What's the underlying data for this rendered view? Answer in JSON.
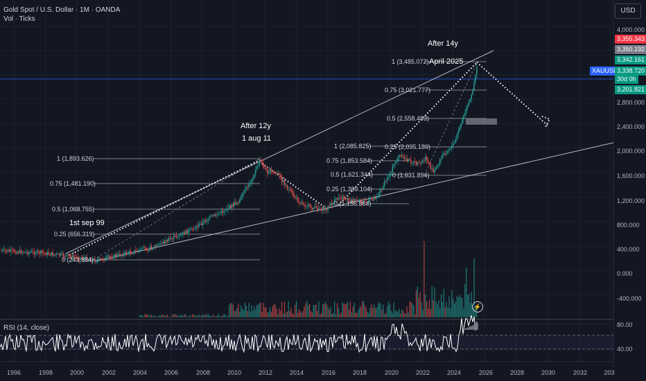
{
  "legend": {
    "symbol": "Gold Spot / U.S. Dollar · 1M · OANDA",
    "volume": "Vol · Ticks"
  },
  "currency": "USD",
  "rsi_label": "RSI (14, close)",
  "price_axis": [
    "4,000.000",
    "2,800.000",
    "2,400.000",
    "2,000.000",
    "1,600.000",
    "1,200.000",
    "800.000",
    "400.000",
    "0.000",
    "-400.000"
  ],
  "rsi_axis": [
    "80.00",
    "40.00"
  ],
  "badges": {
    "b1": "3,355.343",
    "b2": "3,350.192",
    "b3": "3,342.161",
    "ticker": "XAUUSD",
    "b4": "3,338.720",
    "countdown": "30d 0h",
    "b5": "3,201.821"
  },
  "time_axis": [
    "1996",
    "1998",
    "2000",
    "2002",
    "2004",
    "2006",
    "2008",
    "2010",
    "2012",
    "2014",
    "2016",
    "2018",
    "2020",
    "2022",
    "2024",
    "2026",
    "2028",
    "2030",
    "2032",
    "203"
  ],
  "annotations": {
    "after_12y": "After 12y",
    "aug_11": "1 aug 11",
    "sep_99": "1st sep 99",
    "after_14y": "After 14y",
    "april_2025": "April 2025"
  },
  "fib_left": [
    "1 (1,893.626)",
    "0.75 (1,481.190)",
    "0.5 (1,068.755)",
    "0.25 (656.319)",
    "0 (243.884)"
  ],
  "fib_right": [
    "1 (3,485.072)",
    "0.75 (3,021.777)",
    "0.5 (2,558.483)",
    "0.25 (2,095.189)",
    "0 (1,631.894)"
  ],
  "fib_mid": [
    "1 (2,085.825)",
    "0.75 (1,853.584)",
    "0.5 (1,621.344)",
    "0.25 (1,389.104)",
    "0 (1,156.864)"
  ],
  "colors": {
    "background": "#131722",
    "up": "#26a69a",
    "down": "#ef5350",
    "rsi": "#ffffff",
    "grid": "#2a2e39",
    "badge_red": "#f23645",
    "badge_gray": "#787b86",
    "badge_teal": "#089981",
    "badge_blue": "#2962ff"
  }
}
